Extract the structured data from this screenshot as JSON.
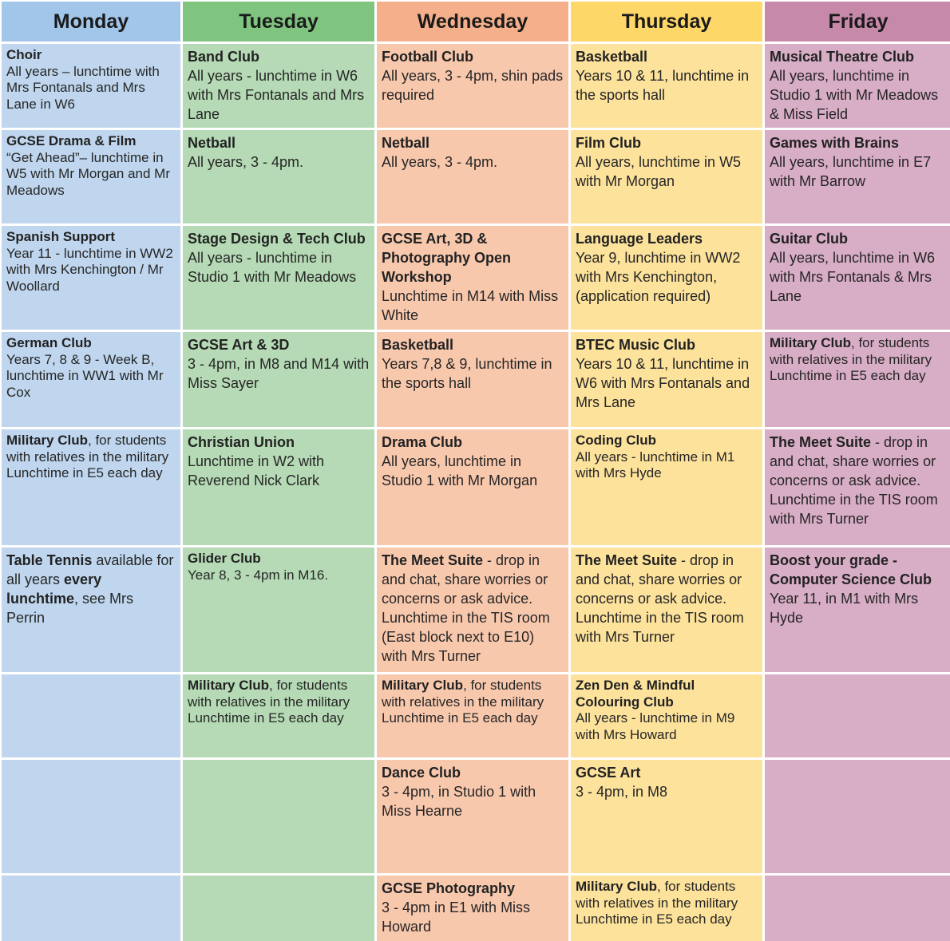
{
  "days": {
    "monday": "Monday",
    "tuesday": "Tuesday",
    "wednesday": "Wednesday",
    "thursday": "Thursday",
    "friday": "Friday"
  },
  "colors": {
    "monday": "#bfd6ee",
    "tuesday": "#b5dab5",
    "wednesday": "#f8c8ad",
    "thursday": "#fde29c",
    "friday": "#d8adc6"
  },
  "monday": {
    "r1": {
      "title": "Choir",
      "desc": "All years – lunchtime with Mrs Fontanals and Mrs Lane in W6"
    },
    "r2": {
      "title": "GCSE Drama & Film",
      "desc": "“Get Ahead”– lunchtime in W5 with Mr Morgan and Mr Meadows"
    },
    "r3": {
      "title": "Spanish Support",
      "desc": "Year 11 - lunchtime in WW2 with Mrs Kenchington / Mr Woollard"
    },
    "r4": {
      "title": "German Club",
      "desc": "Years 7, 8 & 9 - Week B, lunchtime in WW1 with Mr Cox"
    },
    "r5": {
      "title": "Military Club",
      "title_suffix": ", for students with relatives in the military",
      "desc": "Lunchtime in E5 each day"
    },
    "r6": {
      "title": "Table Tennis",
      "t1": " available for all years ",
      "bold2": "every lunchtime",
      "t2": ", see Mrs Perrin"
    }
  },
  "tuesday": {
    "r1": {
      "title": "Band Club",
      "desc": "All years - lunchtime in W6 with Mrs Fontanals and Mrs Lane"
    },
    "r2": {
      "title": "Netball",
      "desc": "All years, 3 - 4pm."
    },
    "r3": {
      "title": "Stage Design & Tech Club",
      "desc": "All years - lunchtime in Studio 1 with Mr Meadows"
    },
    "r4": {
      "title": "GCSE Art & 3D",
      "desc": "3 - 4pm, in M8 and M14 with Miss Sayer"
    },
    "r5": {
      "title": "Christian Union",
      "desc": "Lunchtime in W2 with Reverend Nick Clark"
    },
    "r6": {
      "title": "Glider Club",
      "desc": "Year 8, 3 - 4pm in M16."
    },
    "r7": {
      "title": "Military Club",
      "title_suffix": ", for students with relatives in the military",
      "desc": "Lunchtime in E5 each day"
    }
  },
  "wednesday": {
    "r1": {
      "title": "Football Club",
      "desc": "All years, 3 - 4pm, shin pads required"
    },
    "r2": {
      "title": "Netball",
      "desc": "All years, 3 - 4pm."
    },
    "r3": {
      "title": "GCSE Art, 3D & Photography Open Workshop",
      "desc": "Lunchtime in M14 with Miss White"
    },
    "r4": {
      "title": "Basketball",
      "desc": "Years 7,8 & 9, lunchtime in the sports hall"
    },
    "r5": {
      "title": "Drama Club",
      "desc": "All years, lunchtime in Studio 1 with Mr Morgan"
    },
    "r6": {
      "title": "The Meet Suite",
      "title_suffix": " - drop in and chat, share worries or concerns or ask advice.",
      "desc": "Lunchtime in the TIS room (East block next to E10) with Mrs Turner"
    },
    "r7": {
      "title": "Military Club",
      "title_suffix": ", for students with relatives in the military",
      "desc": "Lunchtime in E5 each day"
    },
    "r8": {
      "title": "Dance Club",
      "desc": "3 - 4pm, in Studio 1 with Miss Hearne"
    },
    "r9": {
      "title": "GCSE Photography",
      "desc": "3 - 4pm in E1 with Miss Howard"
    }
  },
  "thursday": {
    "r1": {
      "title": "Basketball",
      "desc": "Years 10 & 11, lunchtime in the sports hall"
    },
    "r2": {
      "title": "Film Club",
      "desc": "All years, lunchtime in W5 with Mr Morgan"
    },
    "r3": {
      "title": "Language Leaders",
      "desc": "Year 9, lunchtime in WW2 with Mrs Kenchington, (application required)"
    },
    "r4": {
      "title": "BTEC Music Club",
      "desc": "Years 10 & 11, lunchtime in W6 with Mrs Fontanals and Mrs Lane"
    },
    "r5": {
      "title": "Coding Club",
      "desc": "All years - lunchtime in M1 with Mrs Hyde"
    },
    "r6": {
      "title": "The Meet Suite",
      "title_suffix": " - drop in and chat, share worries or concerns or ask advice.",
      "desc": "Lunchtime in the TIS room with Mrs Turner"
    },
    "r7": {
      "title": "Zen Den & Mindful Colouring Club",
      "desc": "All years - lunchtime in M9 with Mrs Howard"
    },
    "r8": {
      "title": "GCSE Art",
      "desc": "3 - 4pm, in M8"
    },
    "r9": {
      "title": "Military Club",
      "title_suffix": ", for students with relatives in the military",
      "desc": "Lunchtime in E5 each day"
    }
  },
  "friday": {
    "r1": {
      "title": "Musical Theatre Club",
      "desc": "All years, lunchtime in Studio 1 with Mr Meadows & Miss Field"
    },
    "r2": {
      "title": "Games with Brains",
      "desc": "All years, lunchtime in E7 with Mr Barrow"
    },
    "r3": {
      "title": "Guitar Club",
      "desc": "All years, lunchtime in W6 with Mrs Fontanals & Mrs Lane"
    },
    "r4": {
      "title": "Military Club",
      "title_suffix": ", for students with relatives in the military",
      "desc": "Lunchtime in E5 each day"
    },
    "r5": {
      "title": "The Meet Suite",
      "title_suffix": " - drop in and chat, share worries or concerns or ask advice.",
      "desc": "Lunchtime in the TIS room with Mrs Turner"
    },
    "r6": {
      "title": "Boost your grade - Computer Science Club",
      "desc": "Year 11, in M1 with Mrs Hyde"
    }
  }
}
